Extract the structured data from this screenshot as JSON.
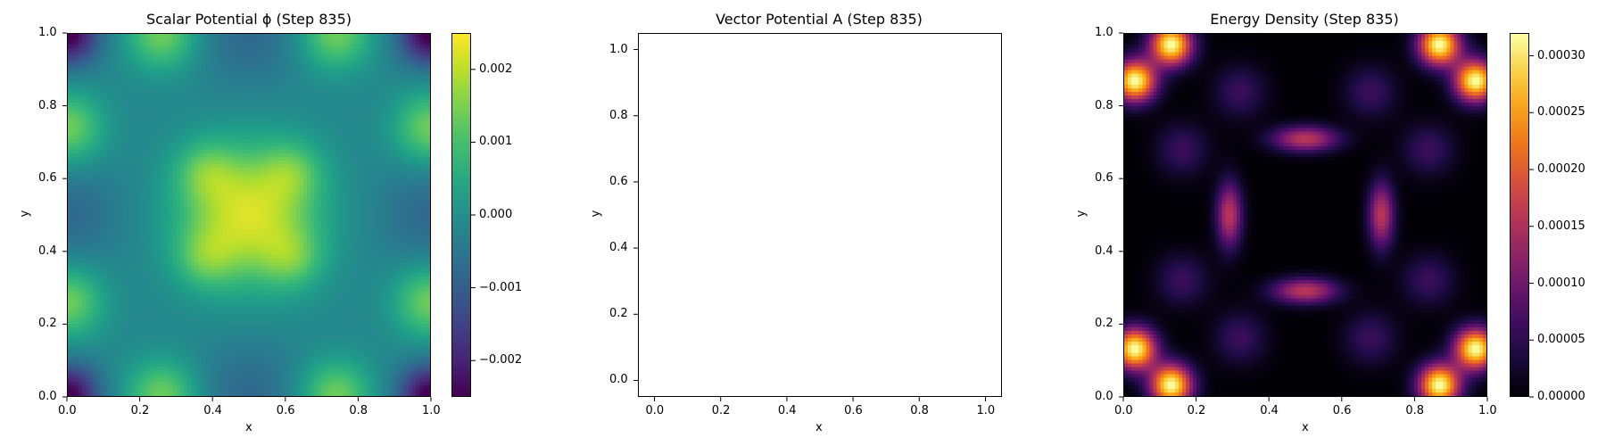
{
  "chart_data": [
    {
      "type": "heatmap",
      "title": "Scalar Potential ϕ (Step 835)",
      "xlabel": "x",
      "ylabel": "y",
      "xlim": [
        0.0,
        1.0
      ],
      "ylim": [
        0.0,
        1.0
      ],
      "xticks": [
        "0.0",
        "0.2",
        "0.4",
        "0.6",
        "0.8",
        "1.0"
      ],
      "yticks": [
        "0.0",
        "0.2",
        "0.4",
        "0.6",
        "0.8",
        "1.0"
      ],
      "colormap": "viridis",
      "colorbar": {
        "range": [
          -0.0025,
          0.0025
        ],
        "ticks": [
          -0.002,
          -0.001,
          0.0,
          0.001,
          0.002
        ],
        "tick_labels": [
          "−0.002",
          "−0.001",
          "0.000",
          "0.001",
          "0.002"
        ]
      },
      "grid": false
    },
    {
      "type": "scatter",
      "title": "Vector Potential A (Step 835)",
      "xlabel": "x",
      "ylabel": "y",
      "xlim": [
        -0.05,
        1.05
      ],
      "ylim": [
        -0.05,
        1.05
      ],
      "xticks": [
        "0.0",
        "0.2",
        "0.4",
        "0.6",
        "0.8",
        "1.0"
      ],
      "yticks": [
        "0.0",
        "0.2",
        "0.4",
        "0.6",
        "0.8",
        "1.0"
      ],
      "series": [],
      "grid": false
    },
    {
      "type": "heatmap",
      "title": "Energy Density (Step 835)",
      "xlabel": "x",
      "ylabel": "y",
      "xlim": [
        0.0,
        1.0
      ],
      "ylim": [
        0.0,
        1.0
      ],
      "xticks": [
        "0.0",
        "0.2",
        "0.4",
        "0.6",
        "0.8",
        "1.0"
      ],
      "yticks": [
        "0.0",
        "0.2",
        "0.4",
        "0.6",
        "0.8",
        "1.0"
      ],
      "colormap": "inferno",
      "colorbar": {
        "range": [
          0.0,
          0.00032
        ],
        "ticks": [
          0.0,
          5e-05,
          0.0001,
          0.00015,
          0.0002,
          0.00025,
          0.0003
        ],
        "tick_labels": [
          "0.00000",
          "0.00005",
          "0.00010",
          "0.00015",
          "0.00020",
          "0.00025",
          "0.00030"
        ]
      },
      "grid": false
    }
  ]
}
